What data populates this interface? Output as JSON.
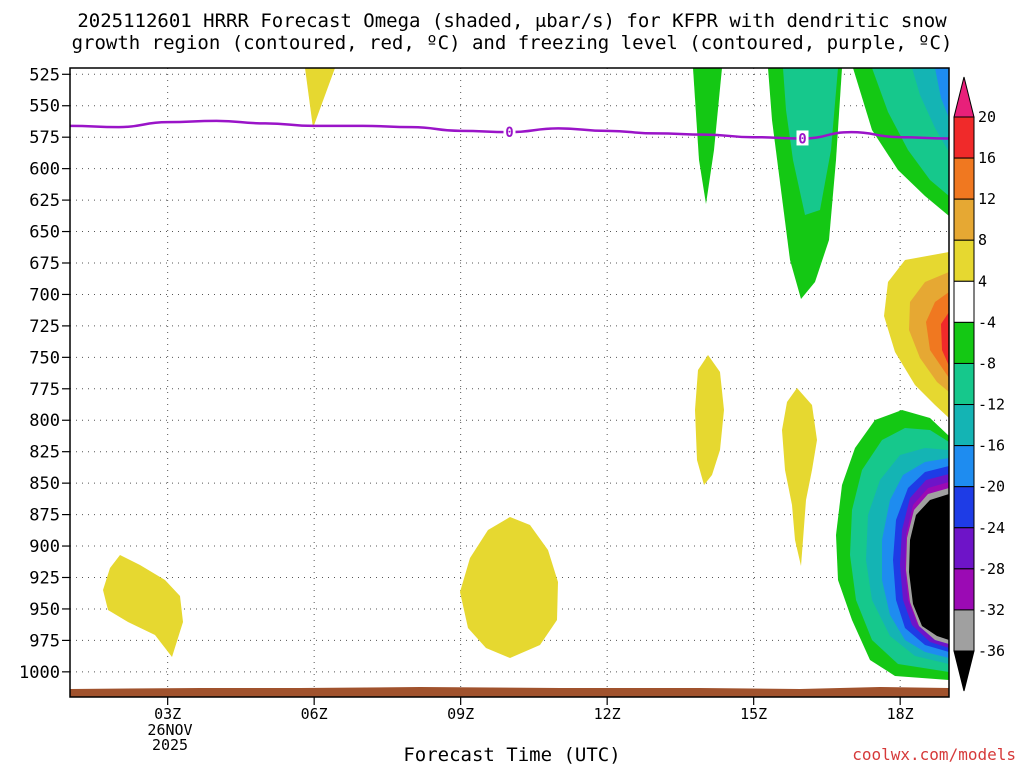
{
  "chart_data": {
    "type": "time-height contour",
    "title_line1": "2025112601 HRRR Forecast Omega (shaded, μbar/s) for KFPR with dendritic snow",
    "title_line2": "growth region (contoured, red, ºC) and freezing level (contoured, purple, ºC)",
    "xlabel": "Forecast Time (UTC)",
    "date_label": [
      "26NOV",
      "2025"
    ],
    "x_ticks": [
      {
        "label": "03Z",
        "hour": 3
      },
      {
        "label": "06Z",
        "hour": 6
      },
      {
        "label": "09Z",
        "hour": 9
      },
      {
        "label": "12Z",
        "hour": 12
      },
      {
        "label": "15Z",
        "hour": 15
      },
      {
        "label": "18Z",
        "hour": 18
      }
    ],
    "x_range": [
      1,
      19
    ],
    "y_ticks": [
      525,
      550,
      575,
      600,
      625,
      650,
      675,
      700,
      725,
      750,
      775,
      800,
      825,
      850,
      875,
      900,
      925,
      950,
      975,
      1000
    ],
    "y_range_hpa": [
      520,
      1020
    ],
    "freezing_level": {
      "label": "0",
      "label_hours": [
        10,
        16
      ],
      "points": [
        [
          1,
          566
        ],
        [
          2,
          567
        ],
        [
          3,
          563
        ],
        [
          4,
          562
        ],
        [
          5,
          564
        ],
        [
          6,
          566
        ],
        [
          7,
          566
        ],
        [
          8,
          567
        ],
        [
          9,
          570
        ],
        [
          10,
          571
        ],
        [
          11,
          568
        ],
        [
          12,
          570
        ],
        [
          13,
          572
        ],
        [
          14,
          573
        ],
        [
          15,
          575
        ],
        [
          16,
          576
        ],
        [
          17,
          571
        ],
        [
          18,
          575
        ],
        [
          19,
          576
        ]
      ]
    },
    "colorbar": {
      "labels": [
        "20",
        "16",
        "12",
        "8",
        "4",
        "-4",
        "-8",
        "-12",
        "-16",
        "-20",
        "-24",
        "-28",
        "-32",
        "-36"
      ],
      "colors": [
        "#e8207a",
        "#f02a2a",
        "#f07820",
        "#e6a833",
        "#e6d830",
        "#ffffff",
        "#14c814",
        "#16c88c",
        "#14b4b4",
        "#1e8cf0",
        "#1e3ce6",
        "#6e14c8",
        "#9b0ab4",
        "#a0a0a0",
        "#000000"
      ]
    },
    "omega_regions": [
      {
        "name": "upward-core",
        "value": -36
      },
      {
        "name": "downward-700",
        "value": 8
      },
      {
        "name": "upward-upper",
        "value": -12
      },
      {
        "name": "downward-low",
        "value": 4
      }
    ],
    "terrain_color": "#a0522d"
  },
  "footer": {
    "credit": "coolwx.com/models"
  }
}
